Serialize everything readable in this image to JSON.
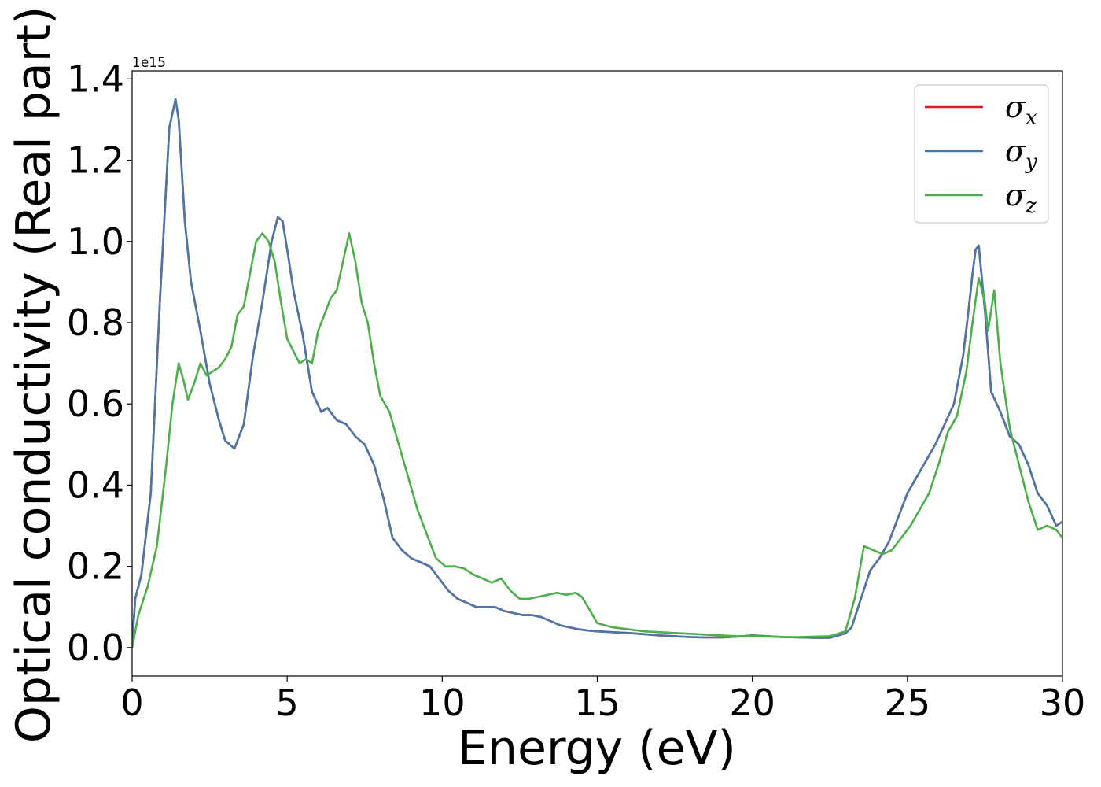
{
  "chart_data": {
    "type": "line",
    "xlabel": "Energy (eV)",
    "ylabel": "Optical conductivity (Real part)",
    "offset_text": "1e15",
    "xlim": [
      0,
      30
    ],
    "ylim": [
      -0.07,
      1.42
    ],
    "xticks": [
      0,
      5,
      10,
      15,
      20,
      25,
      30
    ],
    "xtick_labels": [
      "0",
      "5",
      "10",
      "15",
      "20",
      "25",
      "30"
    ],
    "yticks": [
      0.0,
      0.2,
      0.4,
      0.6,
      0.8,
      1.0,
      1.2,
      1.4
    ],
    "ytick_labels": [
      "0.0",
      "0.2",
      "0.4",
      "0.6",
      "0.8",
      "1.0",
      "1.2",
      "1.4"
    ],
    "grid": false,
    "legend_position": "top-right",
    "series": [
      {
        "name": "σx",
        "symbol": "σ",
        "subscript": "x",
        "color": "#e41a1c",
        "x": [
          0,
          0.1,
          0.3,
          0.6,
          0.9,
          1.2,
          1.4,
          1.5,
          1.7,
          1.9,
          2.2,
          2.5,
          2.8,
          3.0,
          3.3,
          3.6,
          3.9,
          4.2,
          4.5,
          4.7,
          4.85,
          5.0,
          5.2,
          5.5,
          5.8,
          6.1,
          6.3,
          6.6,
          6.9,
          7.2,
          7.5,
          7.8,
          8.1,
          8.4,
          8.7,
          9.0,
          9.3,
          9.6,
          9.9,
          10.2,
          10.5,
          10.8,
          11.1,
          11.4,
          11.7,
          12.0,
          12.3,
          12.6,
          12.9,
          13.2,
          13.5,
          13.8,
          14.1,
          14.4,
          14.7,
          15.0,
          15.5,
          16.0,
          16.5,
          17.0,
          17.5,
          18.0,
          18.5,
          19.0,
          19.5,
          20.0,
          20.5,
          21.0,
          21.5,
          22.0,
          22.5,
          23.0,
          23.2,
          23.5,
          23.8,
          24.1,
          24.4,
          24.7,
          25.0,
          25.3,
          25.6,
          25.9,
          26.2,
          26.5,
          26.8,
          27.0,
          27.1,
          27.2,
          27.3,
          27.5,
          27.7,
          28.0,
          28.3,
          28.6,
          28.9,
          29.2,
          29.5,
          29.8,
          30.0
        ],
        "y": [
          0.0,
          0.12,
          0.18,
          0.38,
          0.86,
          1.28,
          1.35,
          1.3,
          1.05,
          0.9,
          0.78,
          0.65,
          0.56,
          0.51,
          0.49,
          0.55,
          0.72,
          0.85,
          1.0,
          1.06,
          1.05,
          0.98,
          0.88,
          0.77,
          0.63,
          0.58,
          0.59,
          0.56,
          0.55,
          0.52,
          0.5,
          0.45,
          0.37,
          0.27,
          0.24,
          0.22,
          0.21,
          0.2,
          0.17,
          0.14,
          0.12,
          0.11,
          0.1,
          0.1,
          0.1,
          0.09,
          0.085,
          0.08,
          0.08,
          0.075,
          0.065,
          0.055,
          0.05,
          0.045,
          0.042,
          0.04,
          0.038,
          0.036,
          0.033,
          0.03,
          0.028,
          0.026,
          0.025,
          0.025,
          0.027,
          0.03,
          0.028,
          0.026,
          0.025,
          0.024,
          0.024,
          0.035,
          0.05,
          0.12,
          0.19,
          0.22,
          0.26,
          0.32,
          0.38,
          0.42,
          0.46,
          0.5,
          0.55,
          0.6,
          0.72,
          0.85,
          0.92,
          0.98,
          0.99,
          0.83,
          0.63,
          0.58,
          0.52,
          0.5,
          0.45,
          0.38,
          0.35,
          0.3,
          0.31
        ]
      },
      {
        "name": "σy",
        "symbol": "σ",
        "subscript": "y",
        "color": "#4a77aa",
        "x": [
          0,
          0.1,
          0.3,
          0.6,
          0.9,
          1.2,
          1.4,
          1.5,
          1.7,
          1.9,
          2.2,
          2.5,
          2.8,
          3.0,
          3.3,
          3.6,
          3.9,
          4.2,
          4.5,
          4.7,
          4.85,
          5.0,
          5.2,
          5.5,
          5.8,
          6.1,
          6.3,
          6.6,
          6.9,
          7.2,
          7.5,
          7.8,
          8.1,
          8.4,
          8.7,
          9.0,
          9.3,
          9.6,
          9.9,
          10.2,
          10.5,
          10.8,
          11.1,
          11.4,
          11.7,
          12.0,
          12.3,
          12.6,
          12.9,
          13.2,
          13.5,
          13.8,
          14.1,
          14.4,
          14.7,
          15.0,
          15.5,
          16.0,
          16.5,
          17.0,
          17.5,
          18.0,
          18.5,
          19.0,
          19.5,
          20.0,
          20.5,
          21.0,
          21.5,
          22.0,
          22.5,
          23.0,
          23.2,
          23.5,
          23.8,
          24.1,
          24.4,
          24.7,
          25.0,
          25.3,
          25.6,
          25.9,
          26.2,
          26.5,
          26.8,
          27.0,
          27.1,
          27.2,
          27.3,
          27.5,
          27.7,
          28.0,
          28.3,
          28.6,
          28.9,
          29.2,
          29.5,
          29.8,
          30.0
        ],
        "y": [
          0.0,
          0.12,
          0.18,
          0.38,
          0.86,
          1.28,
          1.35,
          1.3,
          1.05,
          0.9,
          0.78,
          0.65,
          0.56,
          0.51,
          0.49,
          0.55,
          0.72,
          0.85,
          1.0,
          1.06,
          1.05,
          0.98,
          0.88,
          0.77,
          0.63,
          0.58,
          0.59,
          0.56,
          0.55,
          0.52,
          0.5,
          0.45,
          0.37,
          0.27,
          0.24,
          0.22,
          0.21,
          0.2,
          0.17,
          0.14,
          0.12,
          0.11,
          0.1,
          0.1,
          0.1,
          0.09,
          0.085,
          0.08,
          0.08,
          0.075,
          0.065,
          0.055,
          0.05,
          0.045,
          0.042,
          0.04,
          0.038,
          0.036,
          0.033,
          0.03,
          0.028,
          0.026,
          0.025,
          0.025,
          0.027,
          0.03,
          0.028,
          0.026,
          0.025,
          0.024,
          0.024,
          0.035,
          0.05,
          0.12,
          0.19,
          0.22,
          0.26,
          0.32,
          0.38,
          0.42,
          0.46,
          0.5,
          0.55,
          0.6,
          0.72,
          0.85,
          0.92,
          0.98,
          0.99,
          0.83,
          0.63,
          0.58,
          0.52,
          0.5,
          0.45,
          0.38,
          0.35,
          0.3,
          0.31
        ]
      },
      {
        "name": "σz",
        "symbol": "σ",
        "subscript": "z",
        "color": "#4daf4a",
        "x": [
          0,
          0.2,
          0.5,
          0.8,
          1.1,
          1.3,
          1.5,
          1.65,
          1.8,
          2.0,
          2.2,
          2.4,
          2.6,
          2.8,
          3.0,
          3.2,
          3.4,
          3.6,
          3.8,
          4.0,
          4.2,
          4.4,
          4.6,
          4.8,
          5.0,
          5.2,
          5.4,
          5.6,
          5.8,
          6.0,
          6.2,
          6.4,
          6.6,
          6.8,
          7.0,
          7.2,
          7.4,
          7.6,
          7.8,
          8.0,
          8.3,
          8.6,
          8.9,
          9.2,
          9.5,
          9.8,
          10.1,
          10.4,
          10.7,
          11.0,
          11.3,
          11.6,
          11.9,
          12.2,
          12.5,
          12.8,
          13.1,
          13.4,
          13.7,
          14.0,
          14.3,
          14.5,
          14.7,
          15.0,
          15.5,
          16.0,
          16.5,
          17.0,
          17.5,
          18.0,
          18.5,
          19.0,
          19.5,
          20.0,
          20.5,
          21.0,
          21.5,
          22.0,
          22.5,
          23.0,
          23.3,
          23.6,
          23.9,
          24.2,
          24.5,
          24.8,
          25.1,
          25.4,
          25.7,
          26.0,
          26.3,
          26.6,
          26.9,
          27.1,
          27.3,
          27.5,
          27.6,
          27.8,
          28.0,
          28.3,
          28.6,
          28.9,
          29.2,
          29.5,
          29.8,
          30.0
        ],
        "y": [
          0.0,
          0.08,
          0.15,
          0.25,
          0.45,
          0.6,
          0.7,
          0.66,
          0.61,
          0.65,
          0.7,
          0.67,
          0.68,
          0.69,
          0.71,
          0.74,
          0.82,
          0.84,
          0.92,
          1.0,
          1.02,
          1.0,
          0.95,
          0.85,
          0.76,
          0.73,
          0.7,
          0.71,
          0.7,
          0.78,
          0.82,
          0.86,
          0.88,
          0.95,
          1.02,
          0.95,
          0.85,
          0.8,
          0.7,
          0.62,
          0.58,
          0.5,
          0.42,
          0.34,
          0.28,
          0.22,
          0.2,
          0.2,
          0.195,
          0.18,
          0.17,
          0.16,
          0.17,
          0.14,
          0.12,
          0.12,
          0.125,
          0.13,
          0.135,
          0.13,
          0.135,
          0.125,
          0.1,
          0.06,
          0.05,
          0.045,
          0.04,
          0.038,
          0.036,
          0.034,
          0.032,
          0.03,
          0.028,
          0.028,
          0.027,
          0.026,
          0.026,
          0.027,
          0.028,
          0.04,
          0.12,
          0.25,
          0.24,
          0.23,
          0.24,
          0.27,
          0.3,
          0.34,
          0.38,
          0.45,
          0.53,
          0.57,
          0.68,
          0.8,
          0.91,
          0.85,
          0.78,
          0.88,
          0.7,
          0.54,
          0.45,
          0.36,
          0.29,
          0.3,
          0.29,
          0.27
        ]
      }
    ]
  }
}
